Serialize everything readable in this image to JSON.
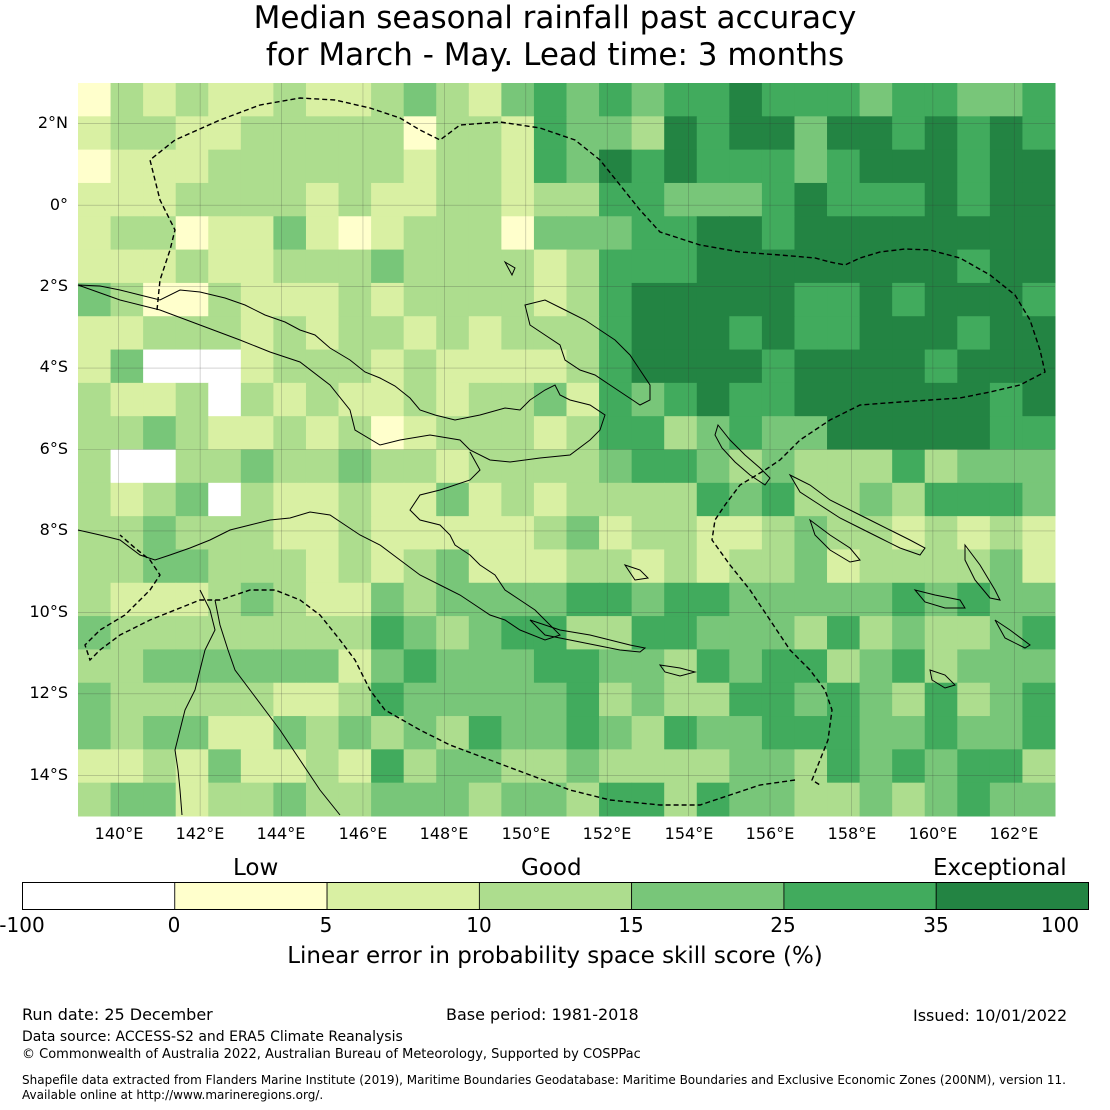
{
  "title_line1": "Median seasonal rainfall past accuracy",
  "title_line2": "for March - May. Lead time: 3 months",
  "map": {
    "lon_labels": [
      "140°E",
      "142°E",
      "144°E",
      "146°E",
      "148°E",
      "150°E",
      "152°E",
      "154°E",
      "156°E",
      "158°E",
      "160°E",
      "162°E"
    ],
    "lat_labels": [
      "2°N",
      "0°",
      "2°S",
      "4°S",
      "6°S",
      "8°S",
      "10°S",
      "12°S",
      "14°S"
    ],
    "lon_range": [
      139.0,
      163.0
    ],
    "lat_range": [
      -15.0,
      3.0
    ],
    "colors": {
      "c0": "#ffffff",
      "c1": "#ffffcc",
      "c2": "#d9f0a3",
      "c3": "#addd8e",
      "c4": "#78c679",
      "c5": "#41ab5d",
      "c6": "#238443"
    }
  },
  "legend": {
    "category_low": "Low",
    "category_good": "Good",
    "category_exceptional": "Exceptional",
    "ticks": [
      "-100",
      "0",
      "5",
      "10",
      "15",
      "25",
      "35",
      "100"
    ],
    "colors": [
      "#ffffff",
      "#ffffcc",
      "#d9f0a3",
      "#addd8e",
      "#78c679",
      "#41ab5d",
      "#238443"
    ],
    "label": "Linear error in probability space skill score (%)"
  },
  "footer": {
    "run_date": "Run date: 25 December",
    "base_period": "Base period: 1981-2018",
    "issued": "Issued: 10/01/2022",
    "data_source": "Data source: ACCESS-S2 and ERA5 Climate Reanalysis",
    "copyright": "© Commonwealth of Australia 2022, Australian Bureau of Meteorology, Supported by COSPPac",
    "shapefile_line1": "Shapefile data extracted from Flanders Marine Institute (2019), Maritime Boundaries Geodatabase: Maritime Boundaries and Exclusive Economic Zones (200NM), version 11.",
    "shapefile_line2": "Available online at http://www.marineregions.org/."
  }
}
